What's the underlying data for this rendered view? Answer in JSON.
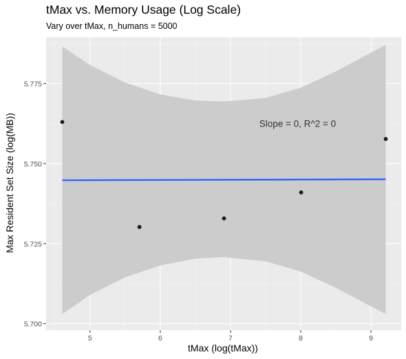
{
  "chart_data": {
    "type": "scatter",
    "title": "tMax vs. Memory Usage (Log Scale)",
    "subtitle": "Vary over tMax, n_humans = 5000",
    "xlabel": "tMax (log(tMax))",
    "ylabel": "Max Resident Set Size (log(MB))",
    "xlim": [
      4.375,
      9.43
    ],
    "ylim": [
      5.698,
      5.7895
    ],
    "x_ticks": [
      5,
      6,
      7,
      8,
      9
    ],
    "y_ticks": [
      5.7,
      5.725,
      5.75,
      5.775
    ],
    "y_tick_labels": [
      "5.700",
      "5.725",
      "5.750",
      "5.775"
    ],
    "grid": true,
    "points": [
      {
        "x": 4.605,
        "y": 5.763
      },
      {
        "x": 5.704,
        "y": 5.7302
      },
      {
        "x": 6.908,
        "y": 5.7329
      },
      {
        "x": 8.006,
        "y": 5.741
      },
      {
        "x": 9.21,
        "y": 5.7577
      }
    ],
    "fit": {
      "x": [
        4.605,
        9.21
      ],
      "y": [
        5.7448,
        5.7451
      ],
      "ci_lower": [
        {
          "x": 4.605,
          "y": 5.703
        },
        {
          "x": 5.0,
          "y": 5.709
        },
        {
          "x": 5.5,
          "y": 5.7145
        },
        {
          "x": 6.0,
          "y": 5.7182
        },
        {
          "x": 6.5,
          "y": 5.7203
        },
        {
          "x": 6.908,
          "y": 5.7208
        },
        {
          "x": 7.5,
          "y": 5.7195
        },
        {
          "x": 8.0,
          "y": 5.7163
        },
        {
          "x": 8.5,
          "y": 5.7112
        },
        {
          "x": 9.21,
          "y": 5.703
        }
      ],
      "ci_upper": [
        {
          "x": 4.605,
          "y": 5.7866
        },
        {
          "x": 5.0,
          "y": 5.7808
        },
        {
          "x": 5.5,
          "y": 5.7753
        },
        {
          "x": 6.0,
          "y": 5.7716
        },
        {
          "x": 6.5,
          "y": 5.7697
        },
        {
          "x": 6.908,
          "y": 5.7694
        },
        {
          "x": 7.5,
          "y": 5.7705
        },
        {
          "x": 8.0,
          "y": 5.7737
        },
        {
          "x": 8.5,
          "y": 5.7788
        },
        {
          "x": 9.21,
          "y": 5.7871
        }
      ]
    },
    "annotation": {
      "text": "Slope = 0, R^2 = 0",
      "x": 7.41,
      "y": 5.7625
    },
    "colors": {
      "panel": "#ebebeb",
      "grid_major": "#ffffff",
      "ribbon": "#cccccc",
      "line": "#3366ff",
      "point": "#1a1a1a"
    }
  }
}
